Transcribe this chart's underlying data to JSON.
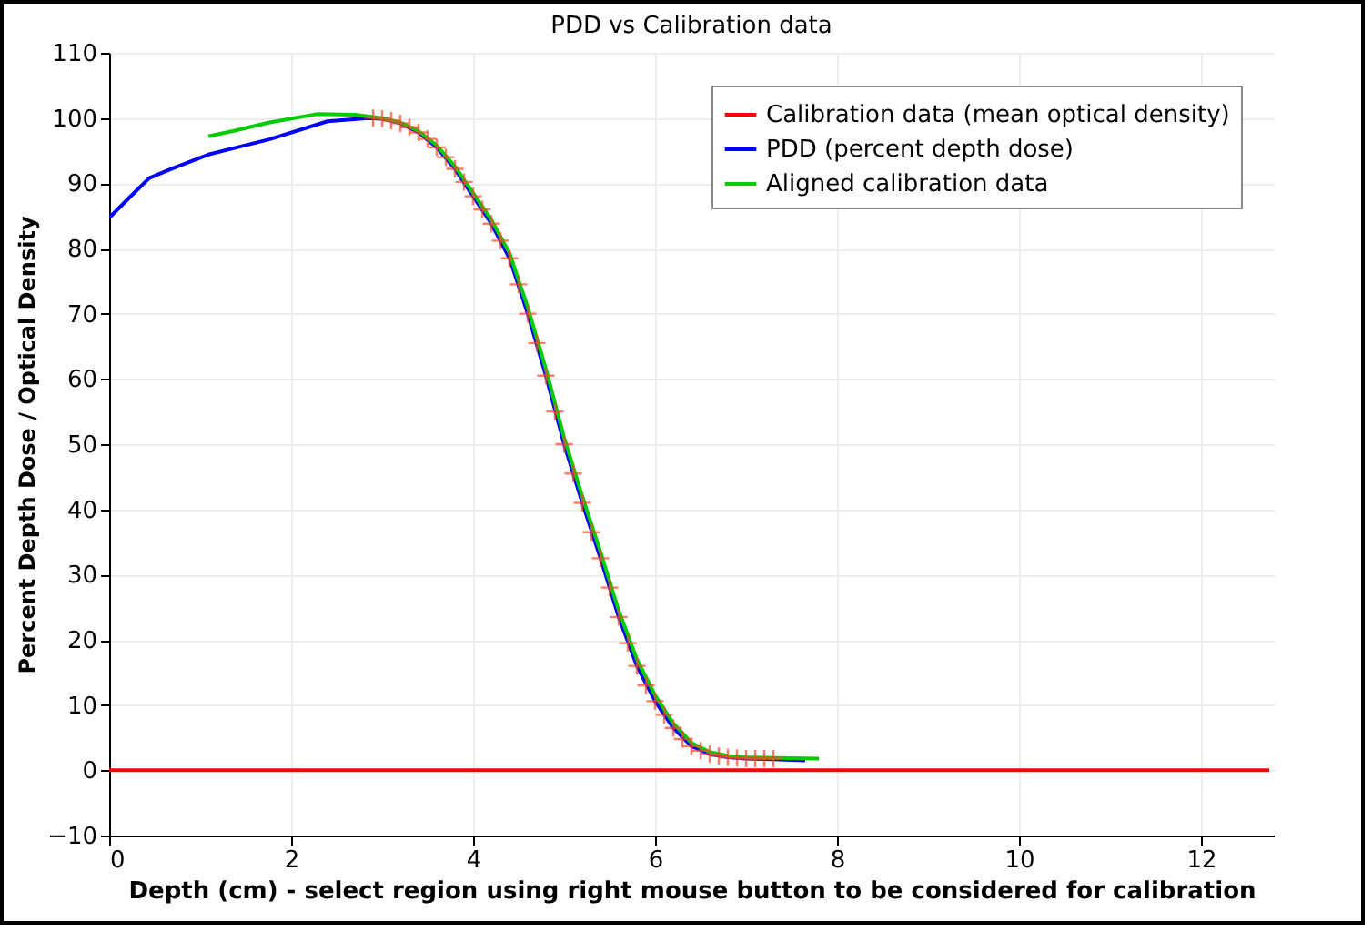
{
  "chart_data": {
    "type": "line",
    "title": "PDD vs Calibration data",
    "xlabel": "Depth (cm) - select region using right mouse button to be considered for calibration",
    "ylabel": "Percent Depth Dose / Optical Density",
    "xlim": [
      0,
      12.8
    ],
    "xticks": [
      0,
      2,
      4,
      6,
      8,
      10,
      12
    ],
    "ylim": [
      -10,
      110
    ],
    "yticks": [
      -10,
      0,
      10,
      20,
      30,
      40,
      50,
      60,
      70,
      80,
      90,
      100,
      110
    ],
    "grid": true,
    "legend": "top right",
    "series": [
      {
        "name": "Calibration data (mean optical density)",
        "color": "#ff0000",
        "x": [
          0,
          12.75
        ],
        "values": [
          0,
          0
        ]
      },
      {
        "name": "PDD (percent depth dose)",
        "color": "#0000ff",
        "x": [
          0,
          0.2,
          0.44,
          0.7,
          1.09,
          1.75,
          2.4,
          2.85,
          3.0,
          3.2,
          3.4,
          3.6,
          3.8,
          4.0,
          4.2,
          4.4,
          4.6,
          4.8,
          5.0,
          5.2,
          5.4,
          5.6,
          5.8,
          6.0,
          6.2,
          6.4,
          6.6,
          6.8,
          7.0,
          7.3,
          7.65
        ],
        "values": [
          84.7,
          87.5,
          90.8,
          92.3,
          94.4,
          96.7,
          99.5,
          100,
          99.9,
          99.2,
          97.8,
          95.5,
          92.2,
          88,
          83.8,
          78.5,
          70,
          60.5,
          50,
          41,
          32.5,
          23.5,
          16,
          10.6,
          6.5,
          3.7,
          2.5,
          2,
          1.8,
          1.7,
          1.5
        ]
      },
      {
        "name": "Aligned calibration data",
        "color": "#00cc00",
        "x": [
          1.09,
          1.36,
          1.75,
          2.28,
          2.7,
          3.0,
          3.2,
          3.4,
          3.6,
          3.8,
          4.0,
          4.2,
          4.4,
          4.6,
          4.8,
          5.0,
          5.2,
          5.4,
          5.6,
          5.8,
          6.0,
          6.2,
          6.4,
          6.6,
          6.8,
          7.0,
          7.3,
          7.8
        ],
        "values": [
          97.2,
          98,
          99.3,
          100.6,
          100.5,
          100,
          99.3,
          98,
          95.8,
          92.6,
          88.5,
          84.4,
          79.3,
          71,
          61.5,
          51,
          42,
          33.5,
          24.5,
          17,
          11.5,
          7.2,
          4.2,
          2.8,
          2.2,
          2,
          1.9,
          1.8
        ]
      },
      {
        "type": "scatter",
        "marker": "cross",
        "color": "#ff4422",
        "x": [
          2.9,
          3.0,
          3.1,
          3.2,
          3.3,
          3.4,
          3.5,
          3.6,
          3.7,
          3.8,
          3.9,
          4.0,
          4.1,
          4.2,
          4.3,
          4.4,
          4.5,
          4.6,
          4.7,
          4.8,
          4.9,
          5.0,
          5.1,
          5.2,
          5.3,
          5.4,
          5.5,
          5.6,
          5.7,
          5.8,
          5.9,
          6.0,
          6.1,
          6.2,
          6.3,
          6.4,
          6.5,
          6.6,
          6.7,
          6.8,
          6.9,
          7.0,
          7.1,
          7.2,
          7.3
        ],
        "values": [
          100,
          99.9,
          99.6,
          99.2,
          98.6,
          97.8,
          96.8,
          95.5,
          94,
          92.2,
          90.2,
          88,
          86,
          83.8,
          81.2,
          78.5,
          74.5,
          70,
          65.5,
          60.5,
          55,
          50,
          45.5,
          41,
          36.5,
          32.5,
          28,
          23.5,
          19.5,
          16,
          13,
          10.6,
          8.5,
          6.5,
          4.8,
          3.7,
          3,
          2.5,
          2.2,
          2,
          1.9,
          1.8,
          1.8,
          1.8,
          1.8
        ]
      }
    ]
  }
}
